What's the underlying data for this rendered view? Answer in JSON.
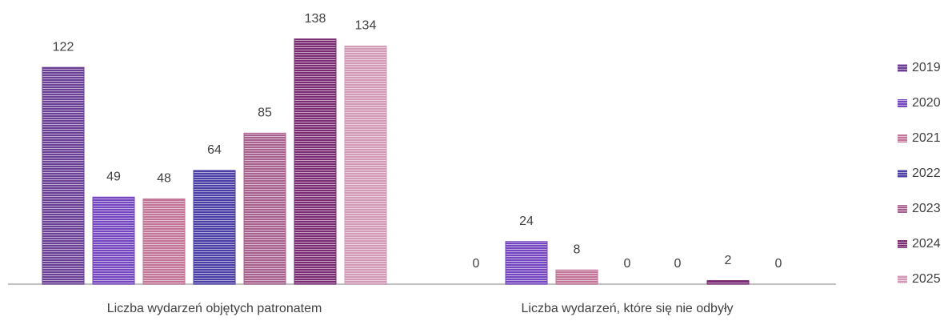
{
  "chart_data": {
    "type": "bar",
    "categories": [
      "Liczba wydarzeń objętych patronatem",
      "Liczba wydarzeń, które się nie odbyły"
    ],
    "series": [
      {
        "name": "2019",
        "color": "#6a3f96",
        "values": [
          122,
          0
        ]
      },
      {
        "name": "2020",
        "color": "#7446c0",
        "values": [
          49,
          24
        ]
      },
      {
        "name": "2021",
        "color": "#c27596",
        "values": [
          48,
          8
        ]
      },
      {
        "name": "2022",
        "color": "#4b3ea6",
        "values": [
          64,
          0
        ]
      },
      {
        "name": "2023",
        "color": "#a8618f",
        "values": [
          85,
          0
        ]
      },
      {
        "name": "2024",
        "color": "#7a2b74",
        "values": [
          138,
          2
        ]
      },
      {
        "name": "2025",
        "color": "#d39ab8",
        "values": [
          134,
          0
        ]
      }
    ],
    "legend": "right"
  }
}
